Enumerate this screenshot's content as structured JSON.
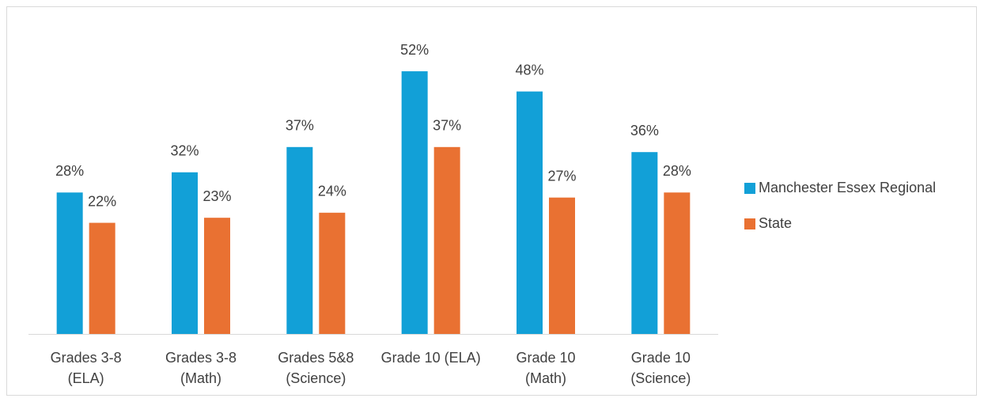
{
  "chart_data": {
    "type": "bar",
    "categories": [
      "Grades 3-8\n(ELA)",
      "Grades 3-8\n(Math)",
      "Grades 5&8\n(Science)",
      "Grade 10 (ELA)",
      "Grade 10\n(Math)",
      "Grade 10\n(Science)"
    ],
    "series": [
      {
        "name": "Manchester Essex Regional",
        "color": "#12a0d7",
        "values": [
          28,
          32,
          37,
          52,
          48,
          36
        ],
        "value_labels": [
          "28%",
          "32%",
          "37%",
          "52%",
          "48%",
          "36%"
        ]
      },
      {
        "name": "State",
        "color": "#e97132",
        "values": [
          22,
          23,
          24,
          37,
          27,
          28
        ],
        "value_labels": [
          "22%",
          "23%",
          "24%",
          "37%",
          "27%",
          "28%"
        ]
      }
    ],
    "ylim": [
      0,
      60
    ],
    "legend": "right",
    "grid": false
  }
}
